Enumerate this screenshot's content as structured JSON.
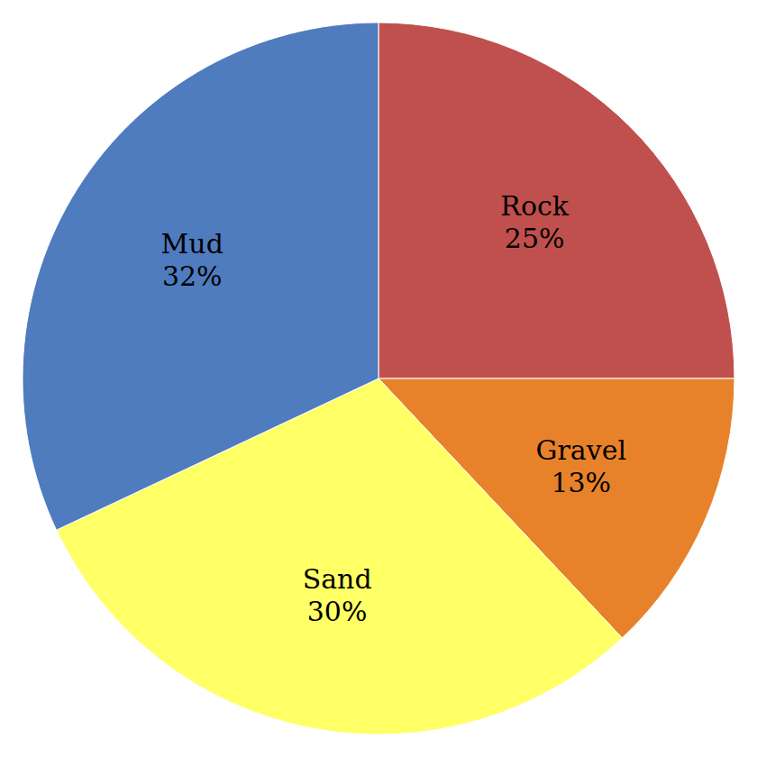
{
  "chart_data": {
    "type": "pie",
    "categories": [
      "Rock",
      "Gravel",
      "Sand",
      "Mud"
    ],
    "values": [
      25,
      13,
      30,
      32
    ],
    "value_labels": [
      "25%",
      "13%",
      "30%",
      "32%"
    ],
    "colors": [
      "#c0504d",
      "#e8822a",
      "#ffff66",
      "#4f7bbf"
    ],
    "data_labels": true
  }
}
